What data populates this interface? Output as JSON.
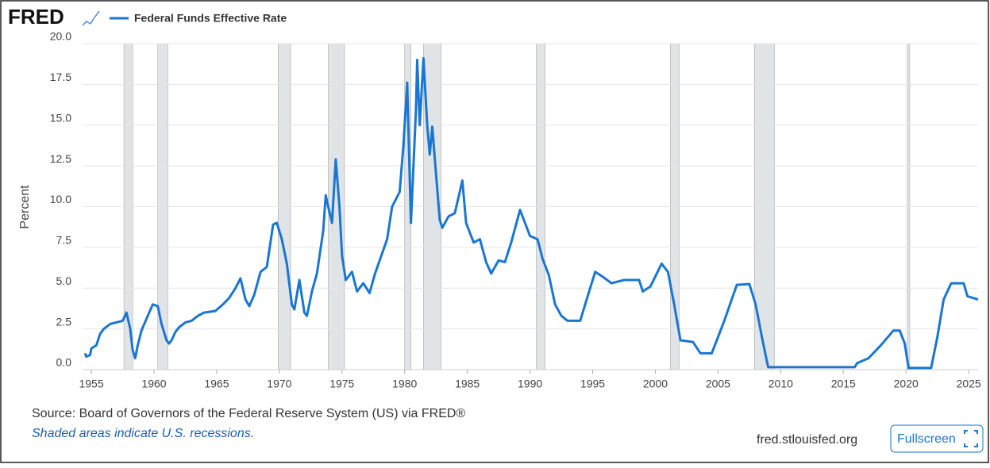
{
  "logo": "FRED",
  "chart_data": {
    "type": "line",
    "ylabel": "Percent",
    "series": [
      {
        "name": "Federal Funds Effective Rate",
        "color": "#1976d2",
        "x": [
          1954.5,
          1954.6,
          1954.9,
          1955.0,
          1955.4,
          1955.7,
          1956.0,
          1956.5,
          1957.0,
          1957.5,
          1957.8,
          1958.1,
          1958.3,
          1958.5,
          1958.7,
          1959.0,
          1959.5,
          1959.9,
          1960.3,
          1960.6,
          1961.0,
          1961.2,
          1961.4,
          1961.7,
          1962.0,
          1962.5,
          1963.0,
          1963.5,
          1964.0,
          1964.9,
          1965.5,
          1966.0,
          1966.5,
          1966.9,
          1967.3,
          1967.6,
          1968.0,
          1968.5,
          1969.0,
          1969.5,
          1969.8,
          1970.2,
          1970.6,
          1971.0,
          1971.2,
          1971.6,
          1972.0,
          1972.2,
          1972.6,
          1973.0,
          1973.5,
          1973.7,
          1973.9,
          1974.2,
          1974.5,
          1974.8,
          1975.0,
          1975.3,
          1975.8,
          1976.2,
          1976.7,
          1977.2,
          1977.6,
          1978.0,
          1978.6,
          1979.0,
          1979.6,
          1979.9,
          1980.2,
          1980.5,
          1980.9,
          1981.0,
          1981.2,
          1981.5,
          1981.8,
          1982.0,
          1982.2,
          1982.5,
          1982.8,
          1983.0,
          1983.5,
          1984.0,
          1984.6,
          1984.9,
          1985.5,
          1986.0,
          1986.5,
          1986.9,
          1987.5,
          1988.0,
          1988.5,
          1989.2,
          1989.5,
          1990.0,
          1990.6,
          1991.0,
          1991.5,
          1992.0,
          1992.5,
          1993.0,
          1994.0,
          1994.6,
          1995.2,
          1995.8,
          1996.5,
          1997.5,
          1998.7,
          1999.0,
          1999.6,
          2000.5,
          2001.0,
          2001.5,
          2002.0,
          2003.0,
          2003.6,
          2004.5,
          2005.5,
          2006.5,
          2007.5,
          2008.0,
          2008.5,
          2008.9,
          2009.0,
          2015.9,
          2016.1,
          2017.0,
          2018.0,
          2019.0,
          2019.5,
          2019.9,
          2020.2,
          2022.0,
          2022.5,
          2023.0,
          2023.6,
          2024.6,
          2024.9,
          2025.75
        ],
        "values": [
          1.0,
          0.8,
          0.9,
          1.3,
          1.5,
          2.2,
          2.5,
          2.8,
          2.9,
          3.0,
          3.5,
          2.5,
          1.2,
          0.7,
          1.5,
          2.4,
          3.3,
          4.0,
          3.9,
          2.8,
          1.8,
          1.6,
          1.8,
          2.3,
          2.6,
          2.9,
          3.0,
          3.3,
          3.5,
          3.6,
          4.0,
          4.4,
          5.0,
          5.6,
          4.3,
          3.9,
          4.6,
          6.0,
          6.3,
          8.9,
          9.0,
          8.0,
          6.5,
          4.0,
          3.7,
          5.5,
          3.5,
          3.3,
          4.8,
          5.9,
          8.5,
          10.7,
          10.0,
          9.0,
          12.9,
          10.0,
          7.0,
          5.5,
          6.0,
          4.8,
          5.3,
          4.7,
          5.8,
          6.7,
          8.0,
          10.0,
          10.9,
          13.8,
          17.6,
          9.0,
          15.9,
          19.0,
          15.0,
          19.1,
          15.0,
          13.2,
          14.9,
          12.0,
          9.2,
          8.7,
          9.4,
          9.6,
          11.6,
          9.0,
          7.8,
          8.0,
          6.6,
          5.9,
          6.7,
          6.6,
          7.8,
          9.8,
          9.2,
          8.2,
          8.0,
          6.8,
          5.8,
          4.0,
          3.3,
          3.0,
          3.0,
          4.5,
          6.0,
          5.7,
          5.3,
          5.5,
          5.5,
          4.8,
          5.1,
          6.5,
          6.0,
          4.0,
          1.8,
          1.7,
          1.0,
          1.0,
          3.0,
          5.2,
          5.25,
          4.0,
          2.0,
          0.5,
          0.15,
          0.15,
          0.4,
          0.7,
          1.5,
          2.4,
          2.4,
          1.6,
          0.1,
          0.1,
          2.0,
          4.3,
          5.3,
          5.3,
          4.5,
          4.3
        ]
      }
    ],
    "recessions": [
      [
        1957.6,
        1958.3
      ],
      [
        1960.3,
        1961.1
      ],
      [
        1969.9,
        1970.9
      ],
      [
        1973.9,
        1975.2
      ],
      [
        1980.0,
        1980.5
      ],
      [
        1981.5,
        1982.9
      ],
      [
        1990.5,
        1991.2
      ],
      [
        2001.2,
        2001.9
      ],
      [
        2007.9,
        2009.5
      ],
      [
        2020.1,
        2020.3
      ]
    ],
    "recession_color": "#e1e4e7",
    "xlim": [
      1954.3,
      2025.75
    ],
    "xticks": [
      1955,
      1960,
      1965,
      1970,
      1975,
      1980,
      1985,
      1990,
      1995,
      2000,
      2005,
      2010,
      2015,
      2020,
      2025
    ],
    "ylim": [
      0,
      20
    ],
    "yticks": [
      {
        "value": 0,
        "label": "0.0"
      },
      {
        "value": 2.5,
        "label": "2.5"
      },
      {
        "value": 5,
        "label": "5.0"
      },
      {
        "value": 7.5,
        "label": "7.5"
      },
      {
        "value": 10,
        "label": "10.0"
      },
      {
        "value": 12.5,
        "label": "12.5"
      },
      {
        "value": 15,
        "label": "15.0"
      },
      {
        "value": 17.5,
        "label": "17.5"
      },
      {
        "value": 20,
        "label": "20.0"
      }
    ],
    "grid": true
  },
  "footer": {
    "source": "Source: Board of Governors of the Federal Reserve System (US) via FRED®",
    "note": "Shaded areas indicate U.S. recessions.",
    "site": "fred.stlouisfed.org",
    "button": "Fullscreen"
  }
}
